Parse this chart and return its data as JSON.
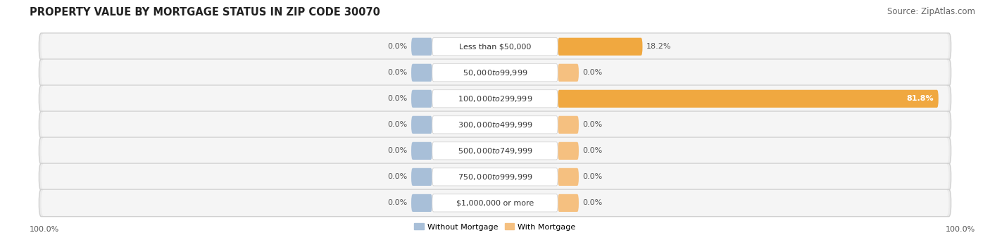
{
  "title": "PROPERTY VALUE BY MORTGAGE STATUS IN ZIP CODE 30070",
  "source": "Source: ZipAtlas.com",
  "categories": [
    "Less than $50,000",
    "$50,000 to $99,999",
    "$100,000 to $299,999",
    "$300,000 to $499,999",
    "$500,000 to $749,999",
    "$750,000 to $999,999",
    "$1,000,000 or more"
  ],
  "without_mortgage": [
    0.0,
    0.0,
    0.0,
    0.0,
    0.0,
    0.0,
    0.0
  ],
  "with_mortgage": [
    18.2,
    0.0,
    81.8,
    0.0,
    0.0,
    0.0,
    0.0
  ],
  "without_mortgage_color": "#a8bfd8",
  "with_mortgage_color": "#f5c080",
  "with_mortgage_color_full": "#f0a840",
  "without_mortgage_label": "Without Mortgage",
  "with_mortgage_label": "With Mortgage",
  "row_bg_color": "#ebebeb",
  "row_bg_inner": "#f5f5f5",
  "title_fontsize": 10.5,
  "source_fontsize": 8.5,
  "label_fontsize": 8,
  "axis_label_left": "100.0%",
  "axis_label_right": "100.0%",
  "figsize": [
    14.06,
    3.41
  ],
  "dpi": 100
}
